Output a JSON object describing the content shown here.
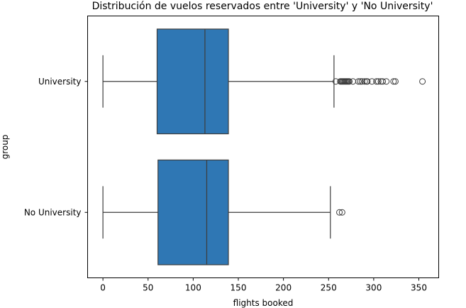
{
  "chart_data": {
    "type": "boxplot",
    "orientation": "horizontal",
    "title": "Distribución de vuelos reservados entre 'University' y 'No University'",
    "xlabel": "flights booked",
    "ylabel": "group",
    "xlim": [
      -17,
      372
    ],
    "xticks": [
      0,
      50,
      100,
      150,
      200,
      250,
      300,
      350
    ],
    "grid": false,
    "box_color": "#2f77b4",
    "line_color": "#3d3d3d",
    "categories": [
      "University",
      "No University"
    ],
    "series": [
      {
        "name": "University",
        "whisker_low": 0,
        "q1": 60,
        "median": 113,
        "q3": 139,
        "whisker_high": 256,
        "outliers": [
          258,
          263,
          264,
          265,
          266,
          267,
          268,
          269,
          270,
          271,
          272,
          273,
          277,
          283,
          285,
          287,
          290,
          292,
          293,
          298,
          303,
          305,
          308,
          310,
          314,
          322,
          324,
          354
        ]
      },
      {
        "name": "No University",
        "whisker_low": 0,
        "q1": 61,
        "median": 115,
        "q3": 139,
        "whisker_high": 252,
        "outliers": [
          262,
          265
        ]
      }
    ]
  }
}
